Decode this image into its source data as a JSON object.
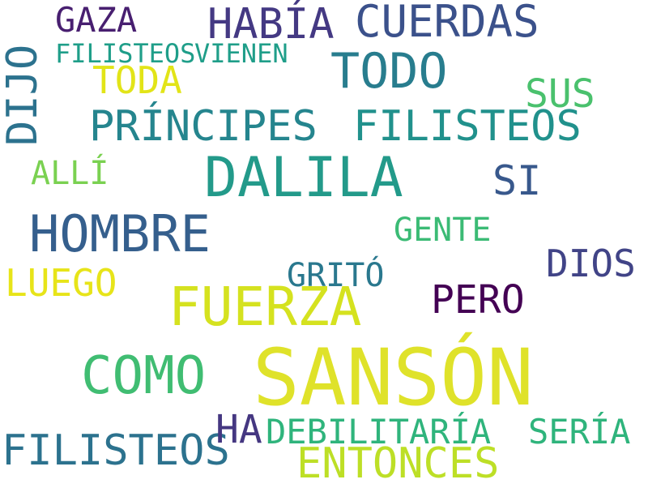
{
  "words": [
    {
      "text": "SANSÓN",
      "color": "#dfe22a"
    },
    {
      "text": "DALILA",
      "color": "#239a8a"
    },
    {
      "text": "FUERZA",
      "color": "#d5e21f"
    },
    {
      "text": "COMO",
      "color": "#40bd72"
    },
    {
      "text": "HOMBRE",
      "color": "#355f8d"
    },
    {
      "text": "TODO",
      "color": "#287d8e"
    },
    {
      "text": "CUERDAS",
      "color": "#3b518b"
    },
    {
      "text": "HABÍA",
      "color": "#443983"
    },
    {
      "text": "PRÍNCIPES",
      "color": "#25858e"
    },
    {
      "text": "FILISTEOS",
      "color": "#21918c"
    },
    {
      "text": "DIJO",
      "color": "#2c728e"
    },
    {
      "text": "FILISTEOS",
      "color": "#2c728e"
    },
    {
      "text": "ENTONCES",
      "color": "#bddf26"
    },
    {
      "text": "SI",
      "color": "#38588c"
    },
    {
      "text": "PERO",
      "color": "#440154"
    },
    {
      "text": "HA",
      "color": "#453781"
    },
    {
      "text": "SUS",
      "color": "#4ac16d"
    },
    {
      "text": "DIOS",
      "color": "#414487"
    },
    {
      "text": "LUEGO",
      "color": "#e7e419"
    },
    {
      "text": "TODA",
      "color": "#e2e418"
    },
    {
      "text": "GAZA",
      "color": "#481f70"
    },
    {
      "text": "DEBILITARÍA",
      "color": "#2fb47c"
    },
    {
      "text": "SERÍA",
      "color": "#2fb47c"
    },
    {
      "text": "GRITÓ",
      "color": "#2a788e"
    },
    {
      "text": "GENTE",
      "color": "#3bbb75"
    },
    {
      "text": "ALLÍ",
      "color": "#7ad151"
    },
    {
      "text": "FILISTEOS",
      "color": "#1f9e89"
    },
    {
      "text": "VIENEN",
      "color": "#1f9e89"
    }
  ]
}
